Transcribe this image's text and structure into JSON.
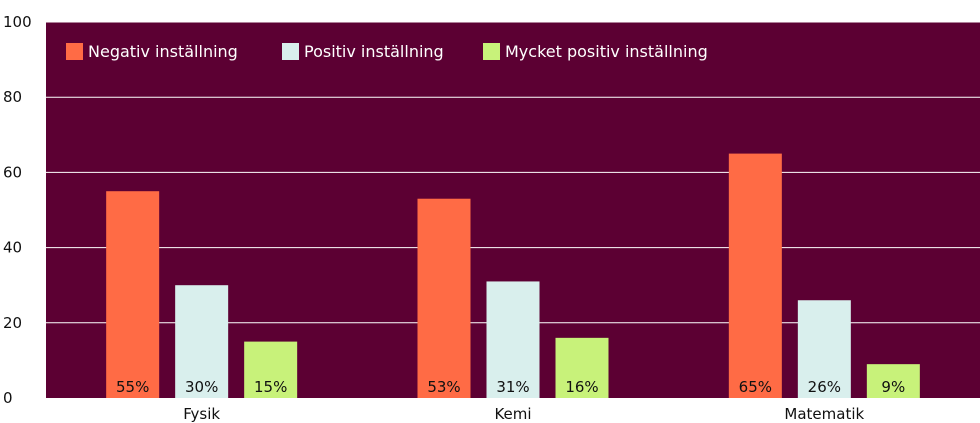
{
  "chart_data": {
    "type": "bar",
    "categories": [
      "Fysik",
      "Kemi",
      "Matematik"
    ],
    "series": [
      {
        "name": "Negativ inställning",
        "values": [
          55,
          53,
          65
        ],
        "color": "#ff6b45"
      },
      {
        "name": "Positiv inställning",
        "values": [
          30,
          31,
          26
        ],
        "color": "#d9efed"
      },
      {
        "name": "Mycket positiv inställning",
        "values": [
          15,
          16,
          9
        ],
        "color": "#c8f27a"
      }
    ],
    "data_labels": [
      [
        "55%",
        "53%",
        "65%"
      ],
      [
        "30%",
        "31%",
        "26%"
      ],
      [
        "15%",
        "16%",
        "9%"
      ]
    ],
    "yticks": [
      0,
      20,
      40,
      60,
      80,
      100
    ],
    "ylim": [
      0,
      100
    ],
    "grid": true,
    "legend_position": "top-left",
    "plot_background": "#5c0033",
    "gridline_color": "#ffffff"
  }
}
